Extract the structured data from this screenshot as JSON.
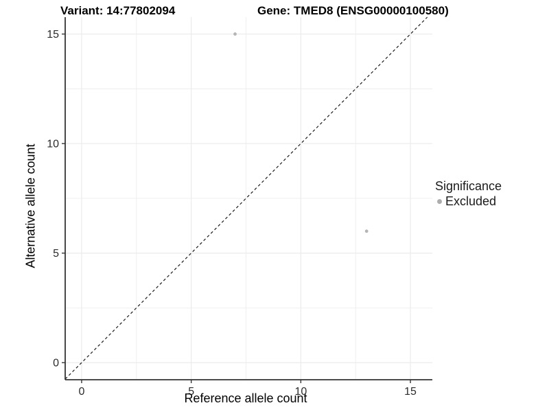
{
  "chart_data": {
    "type": "scatter",
    "title_left": "Variant: 14:77802094",
    "title_right": "Gene: TMED8 (ENSG00000100580)",
    "xlabel": "Reference allele count",
    "ylabel": "Alternative allele count",
    "xlim": [
      -0.75,
      16.0
    ],
    "ylim": [
      -0.78,
      15.77
    ],
    "x_ticks": [
      0,
      5,
      10,
      15
    ],
    "y_ticks": [
      0,
      5,
      10,
      15
    ],
    "x_minor_ticks": [
      2.5,
      7.5,
      12.5
    ],
    "y_minor_ticks": [
      2.5,
      7.5,
      12.5
    ],
    "grid": true,
    "reference_line": {
      "style": "dashed",
      "slope": 1,
      "intercept": 0
    },
    "series": [
      {
        "name": "Excluded",
        "points": [
          {
            "x": 7,
            "y": 15
          },
          {
            "x": 13,
            "y": 6
          }
        ]
      }
    ],
    "legend": {
      "title": "Significance",
      "position": "right",
      "entries": [
        {
          "label": "Excluded",
          "color": "#adadad"
        }
      ]
    }
  },
  "colors": {
    "point": "#b5b5b5",
    "grid": "#ebebeb",
    "axis_line": "#333333",
    "tick_label": "#2b2b2b",
    "dashed_line": "#1a1a1a",
    "background": "#ffffff"
  }
}
